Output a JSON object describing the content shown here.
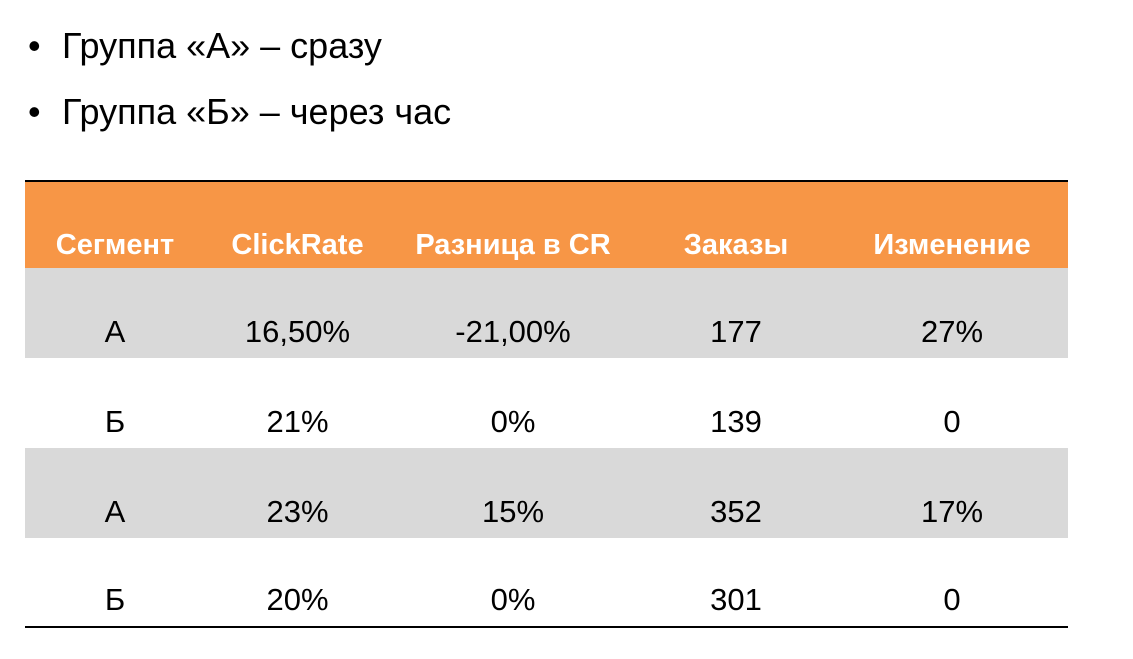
{
  "bullets": [
    "Группа «А» – сразу",
    "Группа «Б» – через час"
  ],
  "table": {
    "header": [
      "Сегмент",
      "ClickRate",
      "Разница в CR",
      "Заказы",
      "Изменение"
    ],
    "rows": [
      [
        "А",
        "16,50%",
        "-21,00%",
        "177",
        "27%"
      ],
      [
        "Б",
        "21%",
        "0%",
        "139",
        "0"
      ],
      [
        "А",
        "23%",
        "15%",
        "352",
        "17%"
      ],
      [
        "Б",
        "20%",
        "0%",
        "301",
        "0"
      ]
    ]
  }
}
